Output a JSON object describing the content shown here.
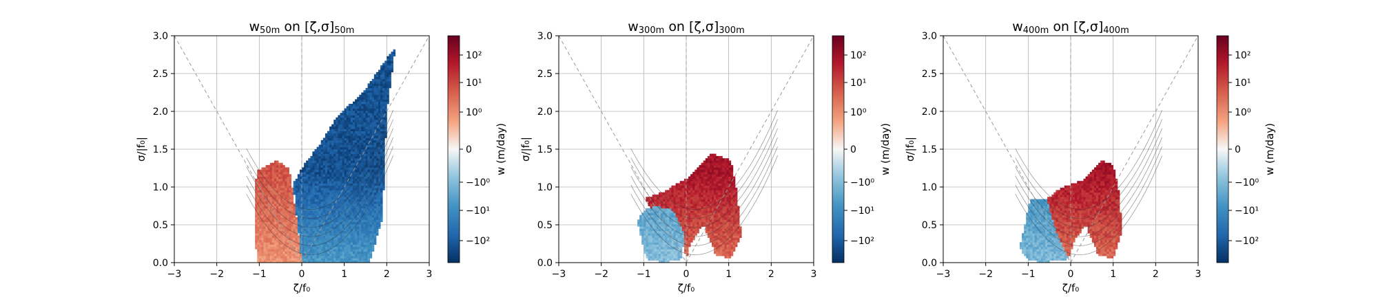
{
  "figure": {
    "colorbar_label": "w (m/day)",
    "colorbar_ticks": [
      "10²",
      "10¹",
      "10⁰",
      "0",
      "−10⁰",
      "−10¹",
      "−10²"
    ],
    "colors": {
      "cmap_low": "#053061",
      "cmap_mid": "#f7f7f7",
      "cmap_high": "#67001f",
      "grid": "#b0b0b0",
      "contour": "#333333",
      "guide": "#999999"
    }
  },
  "chart_data": [
    {
      "type": "heatmap",
      "panel": "w50m",
      "title_main": "w",
      "title_sub": "50m",
      "title_on": "on [ζ,σ]",
      "title_sub2": "50m",
      "xlabel": "ζ/f₀",
      "ylabel": "σ/|f₀|",
      "xlim": [
        -3,
        3
      ],
      "ylim": [
        0,
        3
      ],
      "xticks": [
        "−3",
        "−2",
        "−1",
        "0",
        "1",
        "2",
        "3"
      ],
      "yticks": [
        "0.0",
        "0.5",
        "1.0",
        "1.5",
        "2.0",
        "2.5",
        "3.0"
      ],
      "grid": true,
      "regions": [
        {
          "sign": "positive",
          "intensity": 0.55,
          "boundary": [
            [
              -1.05,
              0
            ],
            [
              -1.12,
              0.5
            ],
            [
              -1.1,
              1.0
            ],
            [
              -1.05,
              1.22
            ],
            [
              -0.6,
              1.35
            ],
            [
              -0.3,
              1.25
            ],
            [
              -0.15,
              0.7
            ],
            [
              -0.05,
              0.25
            ],
            [
              0,
              0
            ]
          ]
        },
        {
          "sign": "negative",
          "intensity": 0.85,
          "boundary": [
            [
              0,
              0
            ],
            [
              -0.1,
              0.5
            ],
            [
              -0.2,
              1.05
            ],
            [
              0,
              1.25
            ],
            [
              0.4,
              1.55
            ],
            [
              0.8,
              1.9
            ],
            [
              1.5,
              2.3
            ],
            [
              2.0,
              2.7
            ],
            [
              2.2,
              2.85
            ],
            [
              2.0,
              2.0
            ],
            [
              1.95,
              1.3
            ],
            [
              1.9,
              0.6
            ],
            [
              1.65,
              0.1
            ],
            [
              1.6,
              0
            ],
            [
              0.6,
              0
            ]
          ]
        }
      ]
    },
    {
      "type": "heatmap",
      "panel": "w300m",
      "title_main": "w",
      "title_sub": "300m",
      "title_on": "on [ζ,σ]",
      "title_sub2": "300m",
      "xlabel": "ζ/f₀",
      "ylabel": "σ/|f₀|",
      "xlim": [
        -3,
        3
      ],
      "ylim": [
        0,
        3
      ],
      "xticks": [
        "−3",
        "−2",
        "−1",
        "0",
        "1",
        "2",
        "3"
      ],
      "yticks": [
        "0.0",
        "0.5",
        "1.0",
        "1.5",
        "2.0",
        "2.5",
        "3.0"
      ],
      "grid": true,
      "regions": [
        {
          "sign": "positive",
          "intensity": 0.8,
          "boundary": [
            [
              -0.75,
              0.55
            ],
            [
              -0.95,
              0.85
            ],
            [
              -0.5,
              0.95
            ],
            [
              0.1,
              1.15
            ],
            [
              0.6,
              1.45
            ],
            [
              1.05,
              1.35
            ],
            [
              1.2,
              0.9
            ],
            [
              1.3,
              0.35
            ],
            [
              1.05,
              0.05
            ],
            [
              0.7,
              0.1
            ],
            [
              0.4,
              0.5
            ],
            [
              0.1,
              0.25
            ],
            [
              0,
              0.05
            ],
            [
              -0.2,
              0.5
            ],
            [
              -0.5,
              0.7
            ]
          ]
        },
        {
          "sign": "negative",
          "intensity": 0.5,
          "boundary": [
            [
              -1.15,
              0.55
            ],
            [
              -0.95,
              0.05
            ],
            [
              -0.5,
              0.0
            ],
            [
              -0.1,
              0.05
            ],
            [
              -0.05,
              0.4
            ],
            [
              -0.3,
              0.7
            ],
            [
              -0.75,
              0.75
            ],
            [
              -1.0,
              0.7
            ]
          ]
        }
      ]
    },
    {
      "type": "heatmap",
      "panel": "w400m",
      "title_main": "w",
      "title_sub": "400m",
      "title_on": "on [ζ,σ]",
      "title_sub2": "400m",
      "xlabel": "ζ/f₀",
      "ylabel": "σ/|f₀|",
      "xlim": [
        -3,
        3
      ],
      "ylim": [
        0,
        3
      ],
      "xticks": [
        "−3",
        "−2",
        "−1",
        "0",
        "1",
        "2",
        "3"
      ],
      "yticks": [
        "0.0",
        "0.5",
        "1.0",
        "1.5",
        "2.0",
        "2.5",
        "3.0"
      ],
      "grid": true,
      "regions": [
        {
          "sign": "positive",
          "intensity": 0.8,
          "boundary": [
            [
              -0.55,
              0.85
            ],
            [
              -0.2,
              1.0
            ],
            [
              0.3,
              1.1
            ],
            [
              0.7,
              1.35
            ],
            [
              1.0,
              1.3
            ],
            [
              1.15,
              0.9
            ],
            [
              1.2,
              0.4
            ],
            [
              1.0,
              0.05
            ],
            [
              0.65,
              0.1
            ],
            [
              0.35,
              0.5
            ],
            [
              0.1,
              0.3
            ],
            [
              -0.05,
              0.05
            ],
            [
              -0.3,
              0.35
            ],
            [
              -0.45,
              0.6
            ]
          ]
        },
        {
          "sign": "negative",
          "intensity": 0.55,
          "boundary": [
            [
              -1.2,
              0.2
            ],
            [
              -0.95,
              0.85
            ],
            [
              -0.55,
              0.85
            ],
            [
              -0.45,
              0.6
            ],
            [
              -0.3,
              0.35
            ],
            [
              -0.05,
              0.05
            ],
            [
              -0.7,
              0.0
            ],
            [
              -1.05,
              0.05
            ]
          ]
        }
      ]
    }
  ]
}
